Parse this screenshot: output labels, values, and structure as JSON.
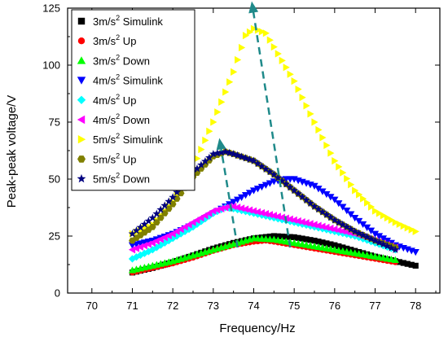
{
  "chart_data": {
    "type": "scatter",
    "xlabel": "Frequency/Hz",
    "ylabel": "Peak-peak voltage/V",
    "xlim": [
      69.4,
      78.6
    ],
    "ylim": [
      0,
      125
    ],
    "xticks": [
      "70",
      "71",
      "72",
      "73",
      "74",
      "75",
      "76",
      "77",
      "78"
    ],
    "yticks": [
      "0",
      "25",
      "50",
      "75",
      "100",
      "125"
    ],
    "legend_position": "top-left",
    "series": [
      {
        "name_base": "3m/s",
        "name_exp": "2",
        "name_suffix": " Simulink",
        "marker": "square",
        "color": "#000000",
        "points": [
          [
            71,
            9
          ],
          [
            71.5,
            11
          ],
          [
            72,
            13.5
          ],
          [
            72.5,
            16.5
          ],
          [
            73,
            19.5
          ],
          [
            73.5,
            22
          ],
          [
            74,
            24
          ],
          [
            74.5,
            25
          ],
          [
            75,
            24.5
          ],
          [
            75.5,
            23
          ],
          [
            76,
            21
          ],
          [
            76.5,
            18.5
          ],
          [
            77,
            16
          ],
          [
            77.5,
            14
          ],
          [
            78,
            12
          ]
        ]
      },
      {
        "name_base": "3m/s",
        "name_exp": "2",
        "name_suffix": " Up",
        "marker": "circle",
        "color": "#ff0000",
        "points": [
          [
            71,
            9
          ],
          [
            71.5,
            11
          ],
          [
            72,
            13
          ],
          [
            72.5,
            15.5
          ],
          [
            73,
            18.5
          ],
          [
            73.5,
            21
          ],
          [
            74,
            22.5
          ],
          [
            74.3,
            23
          ],
          [
            74.5,
            22.5
          ],
          [
            75,
            21
          ],
          [
            75.5,
            19.5
          ],
          [
            76,
            18
          ],
          [
            76.5,
            16.5
          ],
          [
            77,
            15
          ],
          [
            77.5,
            13.5
          ]
        ]
      },
      {
        "name_base": "3m/s",
        "name_exp": "2",
        "name_suffix": " Down",
        "marker": "triangle-up",
        "color": "#00ff00",
        "points": [
          [
            71,
            10
          ],
          [
            71.5,
            12
          ],
          [
            72,
            14
          ],
          [
            72.5,
            16.5
          ],
          [
            73,
            19
          ],
          [
            73.5,
            21.5
          ],
          [
            74,
            24
          ],
          [
            74.5,
            23.5
          ],
          [
            75,
            22
          ],
          [
            75.5,
            20.5
          ],
          [
            76,
            19
          ],
          [
            76.5,
            17.5
          ],
          [
            77,
            16
          ],
          [
            77.5,
            14.5
          ]
        ]
      },
      {
        "name_base": "4m/s",
        "name_exp": "2",
        "name_suffix": " Simulink",
        "marker": "triangle-down",
        "color": "#0000ff",
        "points": [
          [
            71,
            21
          ],
          [
            71.5,
            23
          ],
          [
            72,
            26
          ],
          [
            72.5,
            30
          ],
          [
            73,
            35
          ],
          [
            73.5,
            40
          ],
          [
            74,
            45
          ],
          [
            74.5,
            49
          ],
          [
            74.8,
            50
          ],
          [
            75,
            50
          ],
          [
            75.5,
            47
          ],
          [
            76,
            41
          ],
          [
            76.5,
            33
          ],
          [
            77,
            26
          ],
          [
            77.5,
            21
          ],
          [
            78,
            18
          ]
        ]
      },
      {
        "name_base": "4m/s",
        "name_exp": "2",
        "name_suffix": " Up",
        "marker": "diamond",
        "color": "#00ffff",
        "points": [
          [
            71,
            15
          ],
          [
            71.5,
            19
          ],
          [
            72,
            24
          ],
          [
            72.5,
            29
          ],
          [
            73,
            35
          ],
          [
            73.3,
            37.5
          ],
          [
            73.5,
            37
          ],
          [
            74,
            35
          ],
          [
            74.5,
            33
          ],
          [
            75,
            31
          ],
          [
            75.5,
            29
          ],
          [
            76,
            27
          ],
          [
            76.5,
            25
          ],
          [
            77,
            22
          ],
          [
            77.5,
            19
          ]
        ]
      },
      {
        "name_base": "4m/s",
        "name_exp": "2",
        "name_suffix": " Down",
        "marker": "triangle-left",
        "color": "#ff00ff",
        "points": [
          [
            71,
            19
          ],
          [
            71.5,
            22
          ],
          [
            72,
            26
          ],
          [
            72.5,
            31
          ],
          [
            73,
            36
          ],
          [
            73.4,
            38
          ],
          [
            73.5,
            38
          ],
          [
            74,
            36
          ],
          [
            74.5,
            34
          ],
          [
            75,
            32
          ],
          [
            75.5,
            30
          ],
          [
            76,
            28
          ],
          [
            76.5,
            26
          ],
          [
            77,
            23
          ],
          [
            77.5,
            20
          ]
        ]
      },
      {
        "name_base": "5m/s",
        "name_exp": "2",
        "name_suffix": " Simulink",
        "marker": "triangle-right",
        "color": "#ffff00",
        "points": [
          [
            71,
            26
          ],
          [
            71.5,
            30
          ],
          [
            72,
            40
          ],
          [
            72.5,
            55
          ],
          [
            73,
            75
          ],
          [
            73.5,
            97
          ],
          [
            73.8,
            113
          ],
          [
            74,
            116
          ],
          [
            74.3,
            114
          ],
          [
            74.5,
            108
          ],
          [
            75,
            93
          ],
          [
            75.5,
            75
          ],
          [
            76,
            58
          ],
          [
            76.5,
            45
          ],
          [
            77,
            36
          ],
          [
            77.5,
            31
          ],
          [
            78,
            27
          ]
        ]
      },
      {
        "name_base": "5m/s",
        "name_exp": "2",
        "name_suffix": " Up",
        "marker": "hexagon",
        "color": "#808000",
        "points": [
          [
            71,
            23
          ],
          [
            71.5,
            29
          ],
          [
            72,
            39
          ],
          [
            72.5,
            51
          ],
          [
            73,
            60
          ],
          [
            73.3,
            62
          ],
          [
            73.5,
            61
          ],
          [
            74,
            58
          ],
          [
            74.5,
            52
          ],
          [
            75,
            45
          ],
          [
            75.5,
            38
          ],
          [
            76,
            32
          ],
          [
            76.5,
            27
          ],
          [
            77,
            23
          ],
          [
            77.5,
            20
          ]
        ]
      },
      {
        "name_base": "5m/s",
        "name_exp": "2",
        "name_suffix": " Down",
        "marker": "star",
        "color": "#000080",
        "points": [
          [
            71,
            26
          ],
          [
            71.5,
            33
          ],
          [
            72,
            42
          ],
          [
            72.5,
            53
          ],
          [
            73,
            61
          ],
          [
            73.3,
            62
          ],
          [
            73.5,
            61
          ],
          [
            74,
            58
          ],
          [
            74.5,
            52
          ],
          [
            75,
            45
          ],
          [
            75.5,
            38
          ],
          [
            76,
            32
          ],
          [
            76.5,
            27
          ],
          [
            77,
            23
          ],
          [
            77.5,
            19
          ]
        ]
      }
    ],
    "annotations": [
      {
        "type": "dashed-arrow",
        "color": "#1f8a8a",
        "from": [
          73.6,
          20
        ],
        "to": [
          73.15,
          68
        ]
      },
      {
        "type": "dashed-arrow",
        "color": "#1f8a8a",
        "from": [
          74.9,
          20
        ],
        "to": [
          73.95,
          128
        ]
      }
    ]
  }
}
